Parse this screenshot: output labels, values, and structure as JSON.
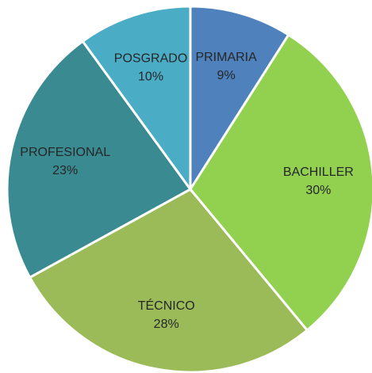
{
  "chart_data": {
    "type": "pie",
    "categories": [
      "PRIMARIA",
      "BACHILLER",
      "TÉCNICO",
      "PROFESIONAL",
      "POSGRADO"
    ],
    "values": [
      9,
      30,
      28,
      23,
      10
    ],
    "value_labels": [
      "9%",
      "30%",
      "28%",
      "23%",
      "10%"
    ],
    "colors": [
      "#4f81bd",
      "#92d050",
      "#9bbb59",
      "#3a8a91",
      "#4bacc6"
    ]
  }
}
